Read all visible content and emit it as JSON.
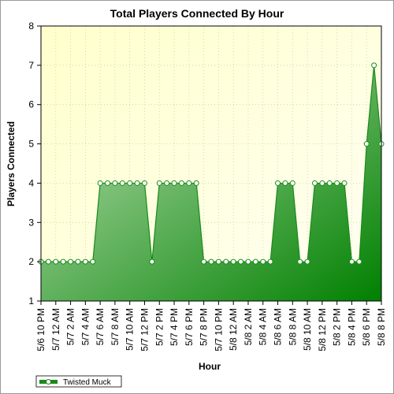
{
  "chart_data": {
    "type": "area",
    "title": "Total Players Connected By Hour",
    "xlabel": "Hour",
    "ylabel": "Players Connected",
    "ylim": [
      1,
      8
    ],
    "yticks": [
      1,
      2,
      3,
      4,
      5,
      6,
      7,
      8
    ],
    "grid": true,
    "legend_position": "bottom-left",
    "colors": {
      "line": "#1a8a1a",
      "fill_light": "#b8ddb0",
      "fill_dark": "#008000",
      "plot_bg_light": "#ffffe0",
      "plot_bg_dark": "#fffff0",
      "grid": "#c8c8a0"
    },
    "x_labels": [
      "5/6 10 PM",
      "5/7 12 AM",
      "5/7 2 AM",
      "5/7 4 AM",
      "5/7 6 AM",
      "5/7 8 AM",
      "5/7 10 AM",
      "5/7 12 PM",
      "5/7 2 PM",
      "5/7 4 PM",
      "5/7 6 PM",
      "5/7 8 PM",
      "5/7 10 PM",
      "5/8 12 AM",
      "5/8 2 AM",
      "5/8 4 AM",
      "5/8 6 AM",
      "5/8 8 AM",
      "5/8 10 AM",
      "5/8 12 PM",
      "5/8 2 PM",
      "5/8 4 PM",
      "5/8 6 PM",
      "5/8 8 PM"
    ],
    "series": [
      {
        "name": "Twisted Muck",
        "values": [
          2,
          2,
          2,
          2,
          2,
          2,
          2,
          2,
          4,
          4,
          4,
          4,
          4,
          4,
          4,
          2,
          4,
          4,
          4,
          4,
          4,
          4,
          2,
          2,
          2,
          2,
          2,
          2,
          2,
          2,
          2,
          2,
          4,
          4,
          4,
          2,
          2,
          4,
          4,
          4,
          4,
          4,
          2,
          2,
          5,
          7,
          5
        ]
      }
    ]
  }
}
